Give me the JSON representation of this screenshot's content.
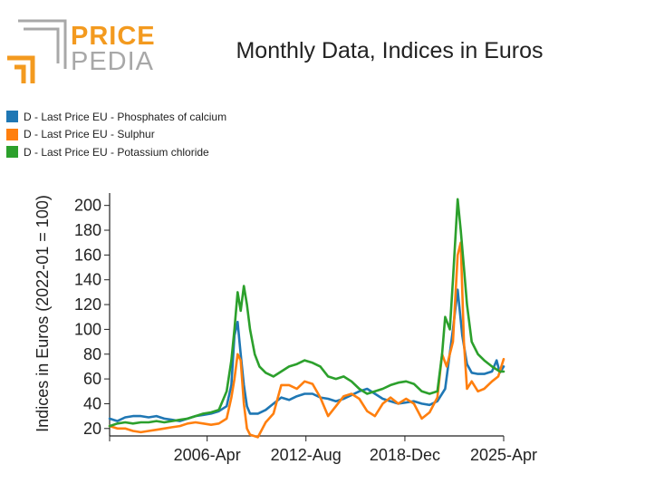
{
  "logo": {
    "line1": "PRICE",
    "line2": "PEDIA"
  },
  "colors": {
    "accent": "#f39a1f",
    "logo_gray": "#a8a8a8"
  },
  "chart_data": {
    "type": "line",
    "title": "Monthly Data, Indices in Euros",
    "xlabel": "",
    "ylabel": "Indices in Euros (2022-01 = 100)",
    "xlim": [
      2000.0,
      2025.25
    ],
    "ylim": [
      14,
      210
    ],
    "x_ticks": [
      {
        "value": 2000.0,
        "label": ""
      },
      {
        "value": 2006.25,
        "label": "2006-Apr"
      },
      {
        "value": 2012.58,
        "label": "2012-Aug"
      },
      {
        "value": 2018.92,
        "label": "2018-Dec"
      },
      {
        "value": 2025.25,
        "label": "2025-Apr"
      }
    ],
    "y_ticks": [
      20,
      40,
      60,
      80,
      100,
      120,
      140,
      160,
      180,
      200
    ],
    "legend_position": "top-left",
    "series": [
      {
        "name": "D - Last Price EU - Phosphates of calcium",
        "color": "#1f77b4",
        "points": [
          [
            2000.0,
            28
          ],
          [
            2000.5,
            26
          ],
          [
            2001.0,
            29
          ],
          [
            2001.5,
            30
          ],
          [
            2002.0,
            30
          ],
          [
            2002.5,
            29
          ],
          [
            2003.0,
            30
          ],
          [
            2003.5,
            28
          ],
          [
            2004.0,
            27
          ],
          [
            2004.5,
            26
          ],
          [
            2005.0,
            28
          ],
          [
            2005.5,
            30
          ],
          [
            2006.0,
            31
          ],
          [
            2006.5,
            32
          ],
          [
            2007.0,
            34
          ],
          [
            2007.5,
            38
          ],
          [
            2007.8,
            55
          ],
          [
            2008.0,
            95
          ],
          [
            2008.2,
            106
          ],
          [
            2008.4,
            80
          ],
          [
            2008.6,
            55
          ],
          [
            2008.8,
            38
          ],
          [
            2009.0,
            32
          ],
          [
            2009.5,
            32
          ],
          [
            2010.0,
            35
          ],
          [
            2010.5,
            40
          ],
          [
            2011.0,
            45
          ],
          [
            2011.5,
            43
          ],
          [
            2012.0,
            46
          ],
          [
            2012.5,
            48
          ],
          [
            2013.0,
            48
          ],
          [
            2013.5,
            45
          ],
          [
            2014.0,
            44
          ],
          [
            2014.5,
            42
          ],
          [
            2015.0,
            44
          ],
          [
            2015.5,
            47
          ],
          [
            2016.0,
            50
          ],
          [
            2016.5,
            52
          ],
          [
            2017.0,
            48
          ],
          [
            2017.5,
            44
          ],
          [
            2018.0,
            42
          ],
          [
            2018.5,
            40
          ],
          [
            2019.0,
            41
          ],
          [
            2019.5,
            42
          ],
          [
            2020.0,
            40
          ],
          [
            2020.5,
            39
          ],
          [
            2021.0,
            42
          ],
          [
            2021.5,
            52
          ],
          [
            2022.0,
            100
          ],
          [
            2022.3,
            132
          ],
          [
            2022.6,
            95
          ],
          [
            2022.9,
            72
          ],
          [
            2023.2,
            65
          ],
          [
            2023.6,
            64
          ],
          [
            2024.0,
            64
          ],
          [
            2024.5,
            66
          ],
          [
            2024.8,
            75
          ],
          [
            2025.0,
            65
          ],
          [
            2025.25,
            70
          ]
        ]
      },
      {
        "name": "D - Last Price EU - Sulphur",
        "color": "#ff7f0e",
        "points": [
          [
            2000.0,
            22
          ],
          [
            2000.5,
            20
          ],
          [
            2001.0,
            20
          ],
          [
            2001.5,
            18
          ],
          [
            2002.0,
            17
          ],
          [
            2002.5,
            18
          ],
          [
            2003.0,
            19
          ],
          [
            2003.5,
            20
          ],
          [
            2004.0,
            21
          ],
          [
            2004.5,
            22
          ],
          [
            2005.0,
            24
          ],
          [
            2005.5,
            25
          ],
          [
            2006.0,
            24
          ],
          [
            2006.5,
            23
          ],
          [
            2007.0,
            24
          ],
          [
            2007.5,
            28
          ],
          [
            2007.8,
            45
          ],
          [
            2008.0,
            60
          ],
          [
            2008.2,
            80
          ],
          [
            2008.4,
            75
          ],
          [
            2008.6,
            40
          ],
          [
            2008.8,
            20
          ],
          [
            2009.0,
            15
          ],
          [
            2009.5,
            13
          ],
          [
            2010.0,
            25
          ],
          [
            2010.5,
            32
          ],
          [
            2011.0,
            55
          ],
          [
            2011.5,
            55
          ],
          [
            2012.0,
            52
          ],
          [
            2012.5,
            58
          ],
          [
            2013.0,
            56
          ],
          [
            2013.5,
            45
          ],
          [
            2014.0,
            30
          ],
          [
            2014.5,
            38
          ],
          [
            2015.0,
            46
          ],
          [
            2015.5,
            48
          ],
          [
            2016.0,
            44
          ],
          [
            2016.5,
            34
          ],
          [
            2017.0,
            30
          ],
          [
            2017.5,
            40
          ],
          [
            2018.0,
            45
          ],
          [
            2018.5,
            40
          ],
          [
            2019.0,
            44
          ],
          [
            2019.5,
            40
          ],
          [
            2020.0,
            28
          ],
          [
            2020.5,
            33
          ],
          [
            2021.0,
            45
          ],
          [
            2021.3,
            80
          ],
          [
            2021.6,
            70
          ],
          [
            2022.0,
            90
          ],
          [
            2022.3,
            160
          ],
          [
            2022.5,
            170
          ],
          [
            2022.7,
            90
          ],
          [
            2022.9,
            52
          ],
          [
            2023.2,
            58
          ],
          [
            2023.6,
            50
          ],
          [
            2024.0,
            52
          ],
          [
            2024.5,
            58
          ],
          [
            2024.9,
            62
          ],
          [
            2025.25,
            76
          ]
        ]
      },
      {
        "name": "D - Last Price EU - Potassium chloride",
        "color": "#2ca02c",
        "points": [
          [
            2000.0,
            22
          ],
          [
            2000.5,
            24
          ],
          [
            2001.0,
            25
          ],
          [
            2001.5,
            24
          ],
          [
            2002.0,
            25
          ],
          [
            2002.5,
            25
          ],
          [
            2003.0,
            26
          ],
          [
            2003.5,
            25
          ],
          [
            2004.0,
            26
          ],
          [
            2004.5,
            27
          ],
          [
            2005.0,
            28
          ],
          [
            2005.5,
            30
          ],
          [
            2006.0,
            32
          ],
          [
            2006.5,
            33
          ],
          [
            2007.0,
            35
          ],
          [
            2007.5,
            50
          ],
          [
            2007.8,
            75
          ],
          [
            2008.0,
            100
          ],
          [
            2008.2,
            130
          ],
          [
            2008.4,
            115
          ],
          [
            2008.6,
            135
          ],
          [
            2008.8,
            120
          ],
          [
            2009.0,
            100
          ],
          [
            2009.3,
            80
          ],
          [
            2009.6,
            70
          ],
          [
            2010.0,
            65
          ],
          [
            2010.5,
            62
          ],
          [
            2011.0,
            66
          ],
          [
            2011.5,
            70
          ],
          [
            2012.0,
            72
          ],
          [
            2012.5,
            75
          ],
          [
            2013.0,
            73
          ],
          [
            2013.5,
            70
          ],
          [
            2014.0,
            62
          ],
          [
            2014.5,
            60
          ],
          [
            2015.0,
            62
          ],
          [
            2015.5,
            58
          ],
          [
            2016.0,
            52
          ],
          [
            2016.5,
            48
          ],
          [
            2017.0,
            50
          ],
          [
            2017.5,
            52
          ],
          [
            2018.0,
            55
          ],
          [
            2018.5,
            57
          ],
          [
            2019.0,
            58
          ],
          [
            2019.5,
            56
          ],
          [
            2020.0,
            50
          ],
          [
            2020.5,
            48
          ],
          [
            2021.0,
            50
          ],
          [
            2021.3,
            80
          ],
          [
            2021.5,
            110
          ],
          [
            2021.8,
            100
          ],
          [
            2022.0,
            140
          ],
          [
            2022.3,
            205
          ],
          [
            2022.5,
            180
          ],
          [
            2022.7,
            150
          ],
          [
            2022.9,
            120
          ],
          [
            2023.2,
            90
          ],
          [
            2023.6,
            80
          ],
          [
            2024.0,
            75
          ],
          [
            2024.5,
            70
          ],
          [
            2025.0,
            66
          ],
          [
            2025.25,
            66
          ]
        ]
      }
    ]
  }
}
